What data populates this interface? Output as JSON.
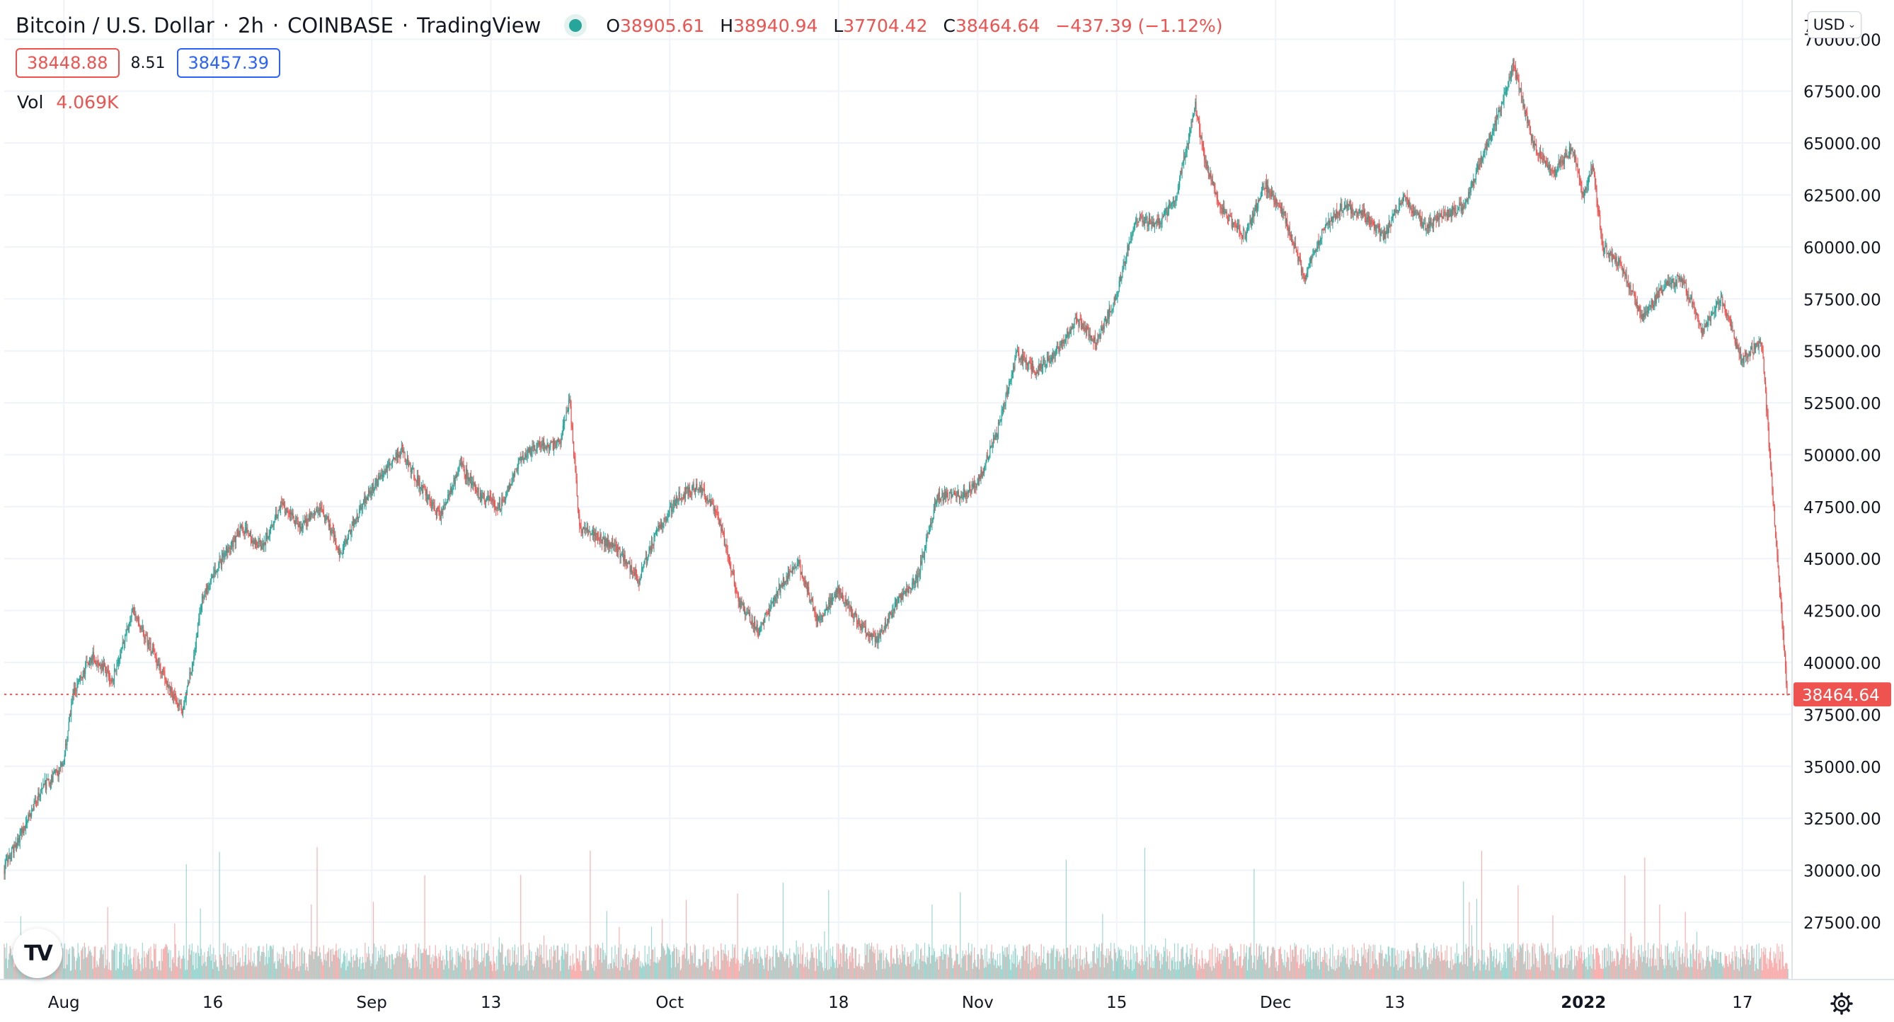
{
  "legend": {
    "symbol": "Bitcoin / U.S. Dollar",
    "interval": "2h",
    "exchange": "COINBASE",
    "provider": "TradingView",
    "open_key": "O",
    "open": "38905.61",
    "high_key": "H",
    "high": "38940.94",
    "low_key": "L",
    "low": "37704.42",
    "close_key": "C",
    "close": "38464.64",
    "change": "−437.39 (−1.12%)"
  },
  "quote": {
    "bid": "38448.88",
    "spread": "8.51",
    "ask": "38457.39"
  },
  "volume": {
    "label": "Vol",
    "value": "4.069K"
  },
  "currency": "USD",
  "last_price_label": "38464.64",
  "colors": {
    "up": "#26a69a",
    "down": "#ef5350",
    "ask": "#2962ff",
    "grid": "#f0f3fa",
    "text": "#131722"
  },
  "icons": {
    "settings": "gear-icon",
    "logo": "tradingview-logo-icon",
    "currency_menu": "chevron-down-icon"
  },
  "chart_data": {
    "type": "candlestick",
    "ylim": [
      26000,
      71000
    ],
    "y_ticks": [
      27500,
      30000,
      32500,
      35000,
      37500,
      40000,
      42500,
      45000,
      47500,
      50000,
      52500,
      55000,
      57500,
      60000,
      62500,
      65000,
      67500,
      70000
    ],
    "y_tick_labels": [
      "27500.00",
      "30000.00",
      "32500.00",
      "35000.00",
      "37500.00",
      "40000.00",
      "42500.00",
      "45000.00",
      "47500.00",
      "50000.00",
      "52500.00",
      "55000.00",
      "57500.00",
      "60000.00",
      "62500.00",
      "65000.00",
      "67500.00",
      "70000.00"
    ],
    "top_tick_fragment": "7",
    "x_range": [
      "2021-07-26",
      "2022-01-22"
    ],
    "x_ticks": [
      {
        "date": "2021-08-01",
        "label": "Aug"
      },
      {
        "date": "2021-08-16",
        "label": "16"
      },
      {
        "date": "2021-09-01",
        "label": "Sep"
      },
      {
        "date": "2021-09-13",
        "label": "13"
      },
      {
        "date": "2021-10-01",
        "label": "Oct"
      },
      {
        "date": "2021-10-18",
        "label": "18"
      },
      {
        "date": "2021-11-01",
        "label": "Nov"
      },
      {
        "date": "2021-11-15",
        "label": "15"
      },
      {
        "date": "2021-12-01",
        "label": "Dec"
      },
      {
        "date": "2021-12-13",
        "label": "13"
      },
      {
        "date": "2022-01-01",
        "label": "2022"
      },
      {
        "date": "2022-01-17",
        "label": "17"
      }
    ],
    "last_price": 38464.64,
    "price_path": [
      [
        "2021-07-26",
        30000
      ],
      [
        "2021-07-28",
        32000
      ],
      [
        "2021-07-30",
        34000
      ],
      [
        "2021-08-01",
        35000
      ],
      [
        "2021-08-02",
        38500
      ],
      [
        "2021-08-03",
        39500
      ],
      [
        "2021-08-04",
        40300
      ],
      [
        "2021-08-06",
        39200
      ],
      [
        "2021-08-08",
        42500
      ],
      [
        "2021-08-10",
        40500
      ],
      [
        "2021-08-12",
        38500
      ],
      [
        "2021-08-13",
        37800
      ],
      [
        "2021-08-14",
        39800
      ],
      [
        "2021-08-15",
        43000
      ],
      [
        "2021-08-17",
        45000
      ],
      [
        "2021-08-19",
        46500
      ],
      [
        "2021-08-21",
        45500
      ],
      [
        "2021-08-23",
        47600
      ],
      [
        "2021-08-25",
        46500
      ],
      [
        "2021-08-27",
        47500
      ],
      [
        "2021-08-29",
        45200
      ],
      [
        "2021-08-31",
        47500
      ],
      [
        "2021-09-02",
        49000
      ],
      [
        "2021-09-04",
        50200
      ],
      [
        "2021-09-06",
        48500
      ],
      [
        "2021-09-08",
        47000
      ],
      [
        "2021-09-10",
        49500
      ],
      [
        "2021-09-12",
        48000
      ],
      [
        "2021-09-14",
        47500
      ],
      [
        "2021-09-16",
        49800
      ],
      [
        "2021-09-18",
        50500
      ],
      [
        "2021-09-20",
        50500
      ],
      [
        "2021-09-21",
        52700
      ],
      [
        "2021-09-22",
        46500
      ],
      [
        "2021-09-24",
        46000
      ],
      [
        "2021-09-26",
        45300
      ],
      [
        "2021-09-28",
        44000
      ],
      [
        "2021-09-30",
        46500
      ],
      [
        "2021-10-02",
        48000
      ],
      [
        "2021-10-04",
        48500
      ],
      [
        "2021-10-06",
        47000
      ],
      [
        "2021-10-08",
        43000
      ],
      [
        "2021-10-10",
        41500
      ],
      [
        "2021-10-12",
        43500
      ],
      [
        "2021-10-14",
        44800
      ],
      [
        "2021-10-16",
        42000
      ],
      [
        "2021-10-18",
        43500
      ],
      [
        "2021-10-20",
        42000
      ],
      [
        "2021-10-22",
        41000
      ],
      [
        "2021-10-24",
        43000
      ],
      [
        "2021-10-26",
        44000
      ],
      [
        "2021-10-28",
        48000
      ],
      [
        "2021-10-30",
        48000
      ],
      [
        "2021-11-01",
        48500
      ],
      [
        "2021-11-03",
        51000
      ],
      [
        "2021-11-05",
        54800
      ],
      [
        "2021-11-07",
        54000
      ],
      [
        "2021-11-09",
        55000
      ],
      [
        "2021-11-11",
        56500
      ],
      [
        "2021-11-13",
        55500
      ],
      [
        "2021-11-15",
        57500
      ],
      [
        "2021-11-17",
        61500
      ],
      [
        "2021-11-19",
        61000
      ],
      [
        "2021-11-21",
        62300
      ],
      [
        "2021-11-23",
        66800
      ],
      [
        "2021-11-24",
        64000
      ],
      [
        "2021-11-26",
        61500
      ],
      [
        "2021-11-28",
        60500
      ],
      [
        "2021-11-30",
        63000
      ],
      [
        "2021-12-02",
        61500
      ],
      [
        "2021-12-04",
        58500
      ],
      [
        "2021-12-06",
        61000
      ],
      [
        "2021-12-08",
        62000
      ],
      [
        "2021-12-10",
        61500
      ],
      [
        "2021-12-12",
        60500
      ],
      [
        "2021-12-14",
        62500
      ],
      [
        "2021-12-16",
        61000
      ],
      [
        "2021-12-18",
        61500
      ],
      [
        "2021-12-20",
        62000
      ],
      [
        "2021-12-22",
        64500
      ],
      [
        "2021-12-24",
        67000
      ],
      [
        "2021-12-25",
        68800
      ],
      [
        "2021-12-27",
        65000
      ],
      [
        "2021-12-29",
        63500
      ],
      [
        "2021-12-31",
        64800
      ],
      [
        "2022-01-01",
        62500
      ],
      [
        "2022-01-02",
        64000
      ],
      [
        "2022-01-03",
        60000
      ],
      [
        "2022-01-05",
        59000
      ],
      [
        "2022-01-07",
        56500
      ],
      [
        "2022-01-09",
        58000
      ],
      [
        "2022-01-11",
        58500
      ],
      [
        "2022-01-13",
        56000
      ],
      [
        "2022-01-15",
        57500
      ],
      [
        "2022-01-17",
        54500
      ],
      [
        "2022-01-19",
        55500
      ]
    ]
  }
}
